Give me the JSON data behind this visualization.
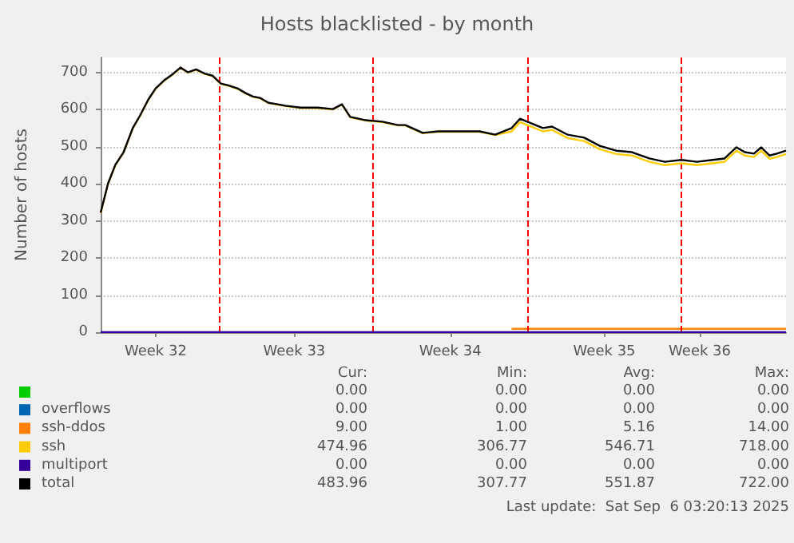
{
  "chart_data": {
    "type": "line",
    "title": "Hosts blacklisted - by month",
    "ylabel": "Number of hosts",
    "x": [
      "2025-08-05T15:00",
      "2025-08-05T23:00",
      "2025-08-06T07:00",
      "2025-08-06T16:00",
      "2025-08-07T02:00",
      "2025-08-07T10:00",
      "2025-08-07T19:00",
      "2025-08-08T03:00",
      "2025-08-08T12:00",
      "2025-08-08T22:00",
      "2025-08-09T06:00",
      "2025-08-09T14:00",
      "2025-08-09T23:00",
      "2025-08-10T09:00",
      "2025-08-10T17:00",
      "2025-08-11T02:00",
      "2025-08-11T10:00",
      "2025-08-11T20:00",
      "2025-08-12T05:00",
      "2025-08-12T13:00",
      "2025-08-12T21:00",
      "2025-08-13T06:00",
      "2025-08-13T16:00",
      "2025-08-14T00:00",
      "2025-08-14T17:00",
      "2025-08-15T12:00",
      "2025-08-16T04:00",
      "2025-08-16T14:00",
      "2025-08-16T23:00",
      "2025-08-17T16:00",
      "2025-08-18T10:00",
      "2025-08-19T03:00",
      "2025-08-19T11:00",
      "2025-08-20T06:00",
      "2025-08-20T23:00",
      "2025-08-21T17:00",
      "2025-08-22T20:00",
      "2025-08-23T13:00",
      "2025-08-24T07:00",
      "2025-08-24T16:00",
      "2025-08-25T00:00",
      "2025-08-25T17:00",
      "2025-08-26T03:00",
      "2025-08-26T20:00",
      "2025-08-27T14:00",
      "2025-08-28T07:00",
      "2025-08-29T01:00",
      "2025-08-29T18:00",
      "2025-08-30T13:00",
      "2025-08-31T06:00",
      "2025-09-01T00:00",
      "2025-09-01T17:00",
      "2025-09-02T10:00",
      "2025-09-02T23:00",
      "2025-09-03T12:00",
      "2025-09-03T21:00",
      "2025-09-04T07:00",
      "2025-09-04T15:00",
      "2025-09-05T00:00",
      "2025-09-05T08:00",
      "2025-09-05T18:00"
    ],
    "xlim": [
      "2025-08-05T15:00",
      "2025-09-05T18:00"
    ],
    "xticks": [
      {
        "value": "2025-08-08T03:00",
        "label": "Week 32"
      },
      {
        "value": "2025-08-14T10:00",
        "label": "Week 33"
      },
      {
        "value": "2025-08-21T12:00",
        "label": "Week 34"
      },
      {
        "value": "2025-08-28T12:00",
        "label": "Week 35"
      },
      {
        "value": "2025-09-01T20:00",
        "label": "Week 36"
      }
    ],
    "ylim": [
      0,
      740
    ],
    "yticks": [
      0,
      100,
      200,
      300,
      400,
      500,
      600,
      700
    ],
    "grid": "y",
    "legend": "bottom",
    "ref_lines": [
      {
        "axis": "x",
        "value": "2025-08-11",
        "color": "#ff0000",
        "line_style": "dashed"
      },
      {
        "axis": "x",
        "value": "2025-08-18",
        "color": "#ff0000",
        "line_style": "dashed"
      },
      {
        "axis": "x",
        "value": "2025-08-25",
        "color": "#ff0000",
        "line_style": "dashed"
      },
      {
        "axis": "x",
        "value": "2025-09-01",
        "color": "#ff0000",
        "line_style": "dashed"
      }
    ],
    "series": [
      {
        "color": "#00cc00",
        "values": [
          null,
          null,
          null,
          null,
          null,
          null,
          null,
          null,
          null,
          null,
          null,
          null,
          null,
          null,
          null,
          null,
          null,
          null,
          null,
          null,
          null,
          null,
          null,
          null,
          null,
          null,
          null,
          null,
          null,
          null,
          null,
          null,
          null,
          null,
          null,
          null,
          null,
          null,
          null,
          null,
          null,
          null,
          null,
          null,
          null,
          null,
          null,
          null,
          null,
          null,
          null,
          null,
          null,
          null,
          null,
          null,
          null,
          null,
          null,
          null,
          null
        ]
      },
      {
        "name": "overflows",
        "color": "#0066b3",
        "values": [
          null,
          null,
          null,
          null,
          null,
          null,
          null,
          null,
          null,
          null,
          null,
          null,
          null,
          null,
          null,
          null,
          null,
          null,
          null,
          null,
          null,
          null,
          null,
          null,
          null,
          null,
          null,
          null,
          null,
          null,
          null,
          null,
          null,
          null,
          null,
          null,
          null,
          null,
          null,
          null,
          null,
          null,
          null,
          null,
          null,
          null,
          null,
          null,
          null,
          null,
          null,
          null,
          null,
          null,
          null,
          null,
          null,
          null,
          null,
          null,
          null
        ]
      },
      {
        "name": "ssh-ddos",
        "color": "#ff8000",
        "values": [
          null,
          null,
          null,
          null,
          null,
          null,
          null,
          null,
          null,
          null,
          null,
          null,
          null,
          null,
          null,
          null,
          null,
          null,
          null,
          null,
          null,
          null,
          null,
          null,
          null,
          null,
          null,
          null,
          null,
          null,
          null,
          null,
          null,
          null,
          null,
          null,
          null,
          null,
          9,
          9,
          9,
          9,
          9,
          9,
          9,
          9,
          9,
          9,
          9,
          9,
          9,
          9,
          9,
          9,
          9,
          9,
          9,
          9,
          9,
          9,
          9
        ]
      },
      {
        "name": "ssh",
        "color": "#ffcc00",
        "values": [
          321,
          399,
          450,
          484,
          549,
          583,
          626,
          656,
          677,
          695,
          712,
          699,
          707,
          695,
          690,
          669,
          664,
          656,
          643,
          634,
          630,
          617,
          613,
          609,
          604,
          604,
          600,
          613,
          579,
          570,
          566,
          557,
          557,
          536,
          540,
          540,
          540,
          531,
          541,
          566,
          558,
          541,
          545,
          523,
          515,
          493,
          480,
          476,
          459,
          450,
          455,
          450,
          455,
          459,
          489,
          476,
          472,
          489,
          467,
          472,
          480
        ]
      },
      {
        "name": "multiport",
        "color": "#330099",
        "values": [
          0,
          0,
          0,
          0,
          0,
          0,
          0,
          0,
          0,
          0,
          0,
          0,
          0,
          0,
          0,
          0,
          0,
          0,
          0,
          0,
          0,
          0,
          0,
          0,
          0,
          0,
          0,
          0,
          0,
          0,
          0,
          0,
          0,
          0,
          0,
          0,
          0,
          0,
          0,
          0,
          0,
          0,
          0,
          0,
          0,
          0,
          0,
          0,
          0,
          0,
          0,
          0,
          0,
          0,
          0,
          0,
          0,
          0,
          0,
          0,
          0
        ]
      },
      {
        "name": "total",
        "color": "#000000",
        "values": [
          322,
          400,
          451,
          485,
          550,
          584,
          627,
          657,
          678,
          696,
          713,
          700,
          708,
          696,
          691,
          670,
          665,
          657,
          644,
          635,
          631,
          618,
          614,
          610,
          605,
          605,
          601,
          614,
          580,
          571,
          567,
          558,
          558,
          537,
          541,
          541,
          541,
          532,
          550,
          575,
          567,
          550,
          554,
          532,
          524,
          502,
          489,
          485,
          468,
          459,
          464,
          459,
          464,
          468,
          498,
          485,
          481,
          498,
          476,
          481,
          489
        ]
      }
    ],
    "annotations": [
      "Cur:",
      "Min:",
      "Avg:",
      "Max:",
      "0.00",
      "0.00",
      "0.00",
      "0.00",
      "0.00",
      "0.00",
      "0.00",
      "0.00",
      "9.00",
      "1.00",
      "5.16",
      "14.00",
      "474.96",
      "306.77",
      "546.71",
      "718.00",
      "0.00",
      "0.00",
      "0.00",
      "0.00",
      "483.96",
      "307.77",
      "551.87",
      "722.00",
      "Last update:  Sat Sep  6 03:20:13 2025"
    ]
  }
}
